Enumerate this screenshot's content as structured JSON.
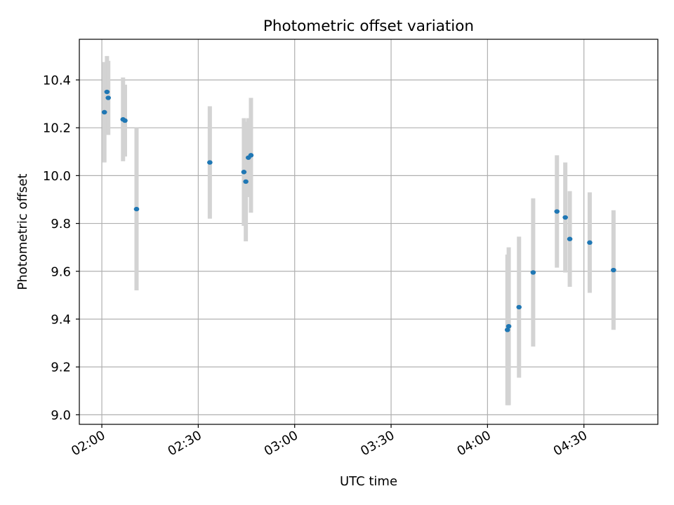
{
  "chart_data": {
    "type": "scatter",
    "title": "Photometric offset variation",
    "xlabel": "UTC time",
    "ylabel": "Photometric offset",
    "x_unit": "UTC time (HH:MM)",
    "xlim": [
      "01:53",
      "04:53"
    ],
    "ylim": [
      8.96,
      10.57
    ],
    "x_ticks": [
      "02:00",
      "02:30",
      "03:00",
      "03:30",
      "04:00",
      "04:30"
    ],
    "y_ticks": [
      "9.0",
      "9.2",
      "9.4",
      "9.6",
      "9.8",
      "10.0",
      "10.2",
      "10.4"
    ],
    "grid": true,
    "marker_color": "#1f77b4",
    "errorbar_color": "#d3d3d3",
    "points": [
      {
        "x": "02:00:48",
        "y": 10.265,
        "err": 0.21
      },
      {
        "x": "02:01:36",
        "y": 10.35,
        "err": 0.15
      },
      {
        "x": "02:02:00",
        "y": 10.325,
        "err": 0.155
      },
      {
        "x": "02:06:36",
        "y": 10.235,
        "err": 0.175
      },
      {
        "x": "02:07:12",
        "y": 10.23,
        "err": 0.15
      },
      {
        "x": "02:10:48",
        "y": 9.86,
        "err": 0.34
      },
      {
        "x": "02:33:36",
        "y": 10.055,
        "err": 0.235
      },
      {
        "x": "02:44:12",
        "y": 10.015,
        "err": 0.225
      },
      {
        "x": "02:44:48",
        "y": 9.975,
        "err": 0.25
      },
      {
        "x": "02:45:36",
        "y": 10.075,
        "err": 0.165
      },
      {
        "x": "02:46:24",
        "y": 10.085,
        "err": 0.24
      },
      {
        "x": "04:06:12",
        "y": 9.355,
        "err": 0.315
      },
      {
        "x": "04:06:36",
        "y": 9.37,
        "err": 0.33
      },
      {
        "x": "04:09:48",
        "y": 9.45,
        "err": 0.295
      },
      {
        "x": "04:14:12",
        "y": 9.595,
        "err": 0.31
      },
      {
        "x": "04:21:36",
        "y": 9.85,
        "err": 0.235
      },
      {
        "x": "04:24:12",
        "y": 9.825,
        "err": 0.23
      },
      {
        "x": "04:25:36",
        "y": 9.735,
        "err": 0.2
      },
      {
        "x": "04:31:48",
        "y": 9.72,
        "err": 0.21
      },
      {
        "x": "04:39:12",
        "y": 9.605,
        "err": 0.25
      }
    ]
  }
}
